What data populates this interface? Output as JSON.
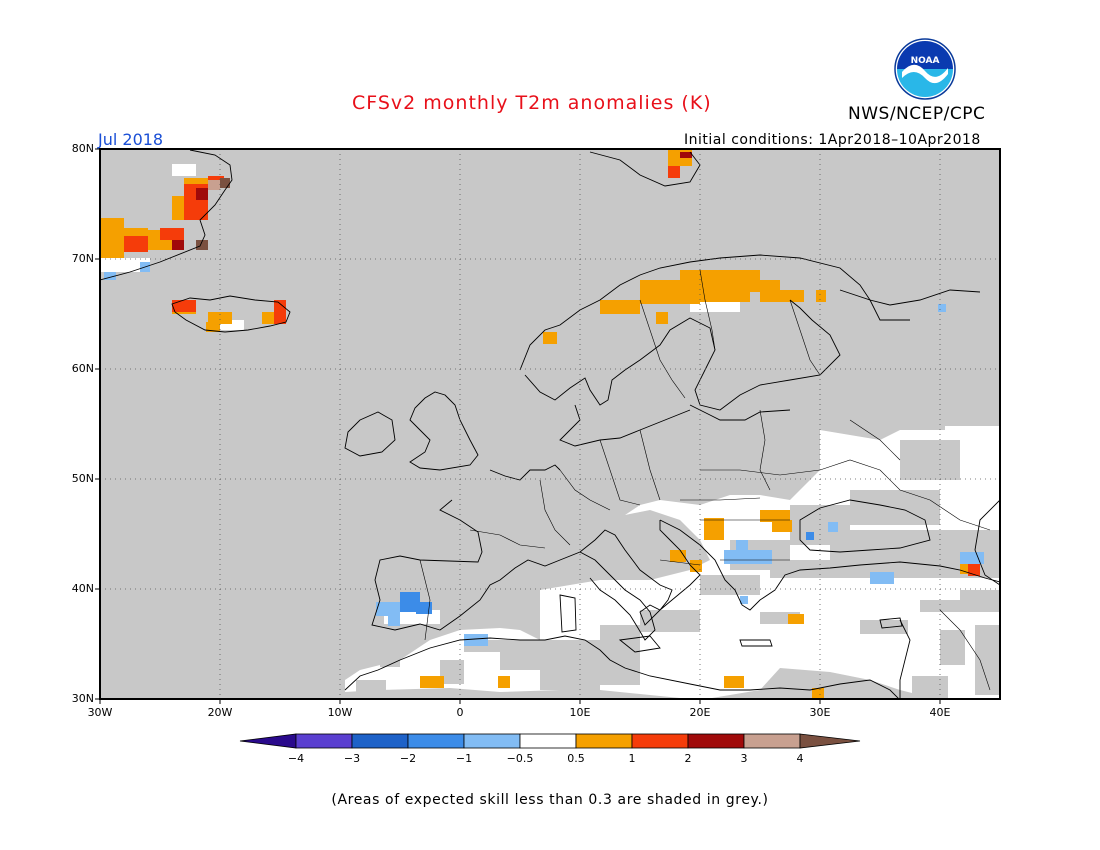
{
  "header": {
    "title": "CFSv2 monthly T2m anomalies (K)",
    "period": "Jul 2018",
    "initial_conditions": "Initial conditions: 1Apr2018–10Apr2018",
    "agency": "NWS/NCEP/CPC",
    "logo_text": "NOAA"
  },
  "map": {
    "region": "Europe",
    "projection": "cylindrical equidistant",
    "lon_range": [
      -30,
      45
    ],
    "lat_range": [
      30,
      80
    ],
    "lat_labels": [
      "80N",
      "70N",
      "60N",
      "50N",
      "40N",
      "30N"
    ],
    "lon_labels": [
      "30W",
      "20W",
      "10W",
      "0",
      "10E",
      "20E",
      "30E",
      "40E"
    ],
    "grid": "dotted 10-degree graticule",
    "low_skill_color": "#c8c8c8",
    "coast_color": "#000000"
  },
  "colorbar": {
    "tick_labels": [
      "−4",
      "−3",
      "−2",
      "−1",
      "−0.5",
      "0.5",
      "1",
      "2",
      "3",
      "4"
    ],
    "colors": [
      "#2a0a8c",
      "#5a3fd0",
      "#1e62c8",
      "#3c8ce8",
      "#82bcf4",
      "#ffffff",
      "#f5a000",
      "#f53c0a",
      "#a00a0a",
      "#c8a090",
      "#7a5040"
    ]
  },
  "footnote": "(Areas of expected skill less than 0.3 are shaded in grey.)"
}
